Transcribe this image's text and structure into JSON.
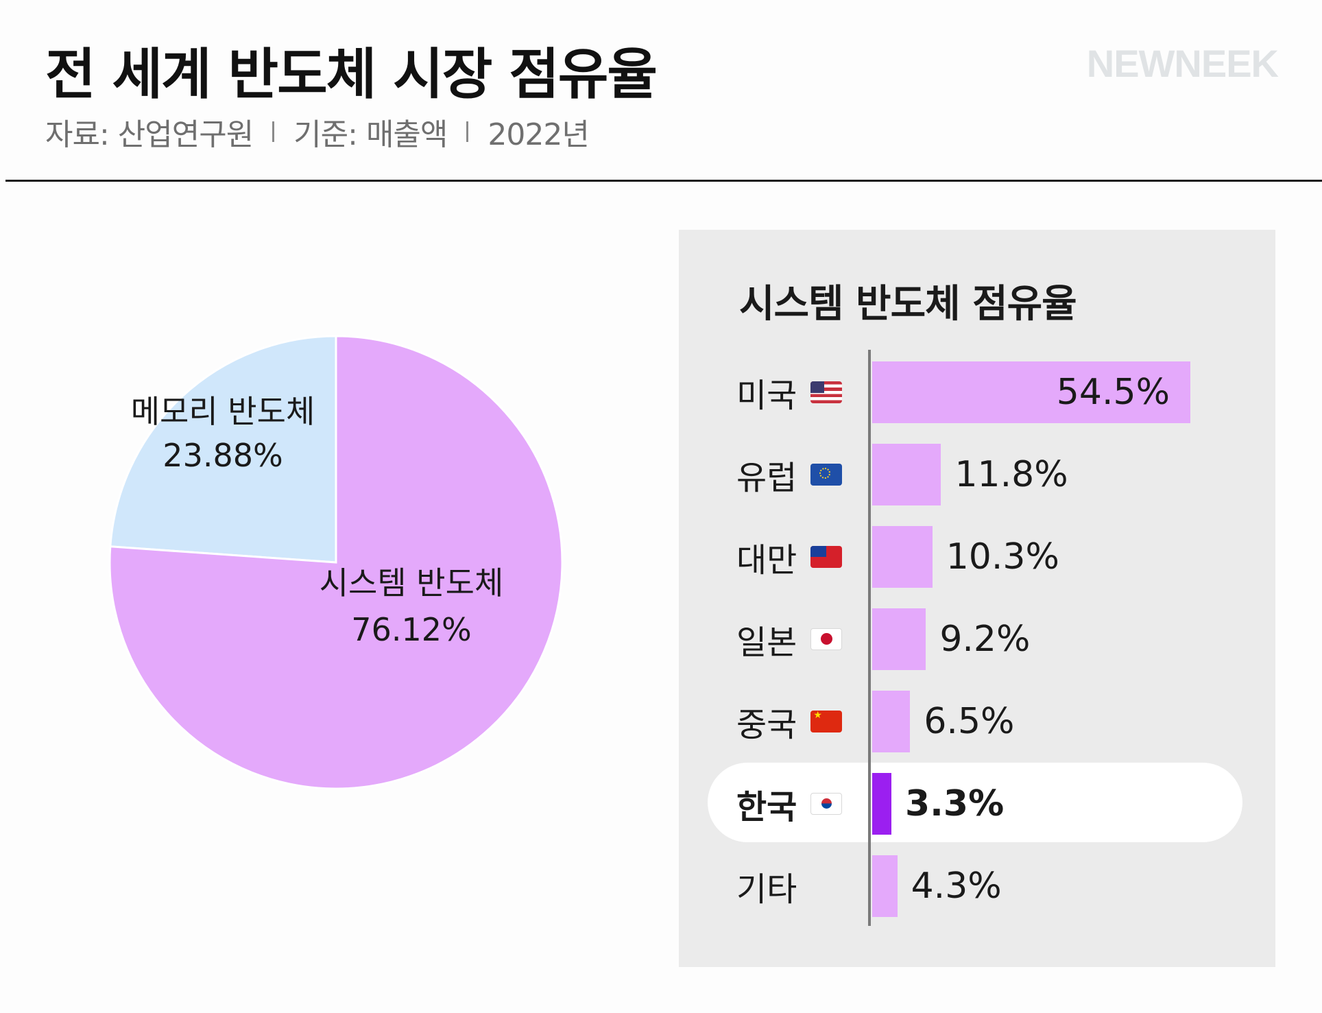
{
  "header": {
    "title": "전 세계 반도체 시장 점유율",
    "source": "자료: 산업연구원",
    "basis": "기준: 매출액",
    "year": "2022년",
    "brand": "NEWNEEK"
  },
  "colors": {
    "system": "#e4a9fb",
    "memory": "#d0e7fb",
    "bar": "#e4a9fb",
    "korea_bar": "#9b1ff0",
    "panel_bg": "#ebebeb"
  },
  "chart_data": [
    {
      "type": "pie",
      "slices": [
        {
          "label": "메모리 반도체",
          "value": 23.88,
          "value_label": "23.88%"
        },
        {
          "label": "시스템 반도체",
          "value": 76.12,
          "value_label": "76.12%"
        }
      ]
    },
    {
      "type": "bar",
      "orientation": "horizontal",
      "title": "시스템 반도체 점유율",
      "categories": [
        "미국",
        "유럽",
        "대만",
        "일본",
        "중국",
        "한국",
        "기타"
      ],
      "values": [
        54.5,
        11.8,
        10.3,
        9.2,
        6.5,
        3.3,
        4.3
      ],
      "value_labels": [
        "54.5%",
        "11.8%",
        "10.3%",
        "9.2%",
        "6.5%",
        "3.3%",
        "4.3%"
      ],
      "flags": [
        "us-flag-icon",
        "eu-flag-icon",
        "taiwan-flag-icon",
        "japan-flag-icon",
        "china-flag-icon",
        "korea-flag-icon",
        ""
      ],
      "highlight": "한국"
    }
  ]
}
